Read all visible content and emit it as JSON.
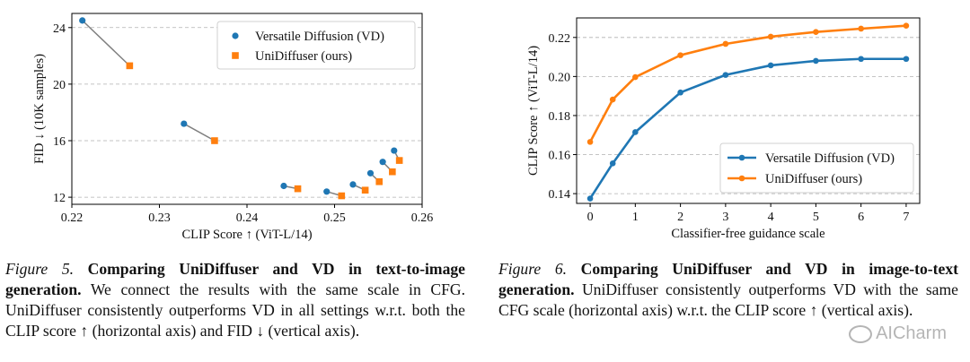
{
  "chart_data": [
    {
      "type": "scatter",
      "xlabel": "CLIP Score ↑ (ViT-L/14)",
      "ylabel": "FID ↓ (10K samples)",
      "xlim": [
        0.22,
        0.26
      ],
      "ylim": [
        11.5,
        25
      ],
      "xticks": [
        0.22,
        0.23,
        0.24,
        0.25,
        0.26
      ],
      "yticks": [
        12,
        16,
        20,
        24
      ],
      "xtick_labels": [
        "0.22",
        "0.23",
        "0.24",
        "0.25",
        "0.26"
      ],
      "ytick_labels": [
        "12",
        "16",
        "20",
        "24"
      ],
      "grid": "horizontal dashed",
      "legend_position": "top-right",
      "connect_pairs": true,
      "series": [
        {
          "name": "Versatile Diffusion (VD)",
          "marker": "circle",
          "color": "#1f77b4",
          "x": [
            0.2212,
            0.2328,
            0.2442,
            0.2491,
            0.2521,
            0.2541,
            0.2555,
            0.2568
          ],
          "y": [
            24.5,
            17.2,
            12.8,
            12.4,
            12.9,
            13.7,
            14.5,
            15.3
          ]
        },
        {
          "name": "UniDiffuser (ours)",
          "marker": "square",
          "color": "#ff7f0e",
          "x": [
            0.2266,
            0.2363,
            0.2458,
            0.2508,
            0.2535,
            0.2551,
            0.2566,
            0.2574
          ],
          "y": [
            21.3,
            16.0,
            12.6,
            12.1,
            12.5,
            13.1,
            13.8,
            14.6
          ]
        }
      ]
    },
    {
      "type": "line",
      "xlabel": "Classifier-free guidance scale",
      "ylabel": "CLIP Score ↑ (ViT-L/14)",
      "xlim": [
        -0.3,
        7.3
      ],
      "ylim": [
        0.135,
        0.23
      ],
      "xticks": [
        0,
        1,
        2,
        3,
        4,
        5,
        6,
        7
      ],
      "yticks": [
        0.14,
        0.16,
        0.18,
        0.2,
        0.22
      ],
      "xtick_labels": [
        "0",
        "1",
        "2",
        "3",
        "4",
        "5",
        "6",
        "7"
      ],
      "ytick_labels": [
        "0.14",
        "0.16",
        "0.18",
        "0.20",
        "0.22"
      ],
      "grid": "horizontal dashed",
      "legend_position": "lower-right",
      "x": [
        0,
        0.5,
        1,
        2,
        3,
        4,
        5,
        6,
        7
      ],
      "series": [
        {
          "name": "Versatile Diffusion (VD)",
          "color": "#1f77b4",
          "values": [
            0.1375,
            0.1555,
            0.1715,
            0.1918,
            0.2008,
            0.2057,
            0.208,
            0.209,
            0.209
          ]
        },
        {
          "name": "UniDiffuser (ours)",
          "color": "#ff7f0e",
          "values": [
            0.1665,
            0.1882,
            0.1997,
            0.2109,
            0.2167,
            0.2204,
            0.2228,
            0.2245,
            0.226
          ]
        }
      ]
    }
  ],
  "captions": {
    "left": {
      "label": "Figure 5.",
      "title": "Comparing UniDiffuser and VD in text-to-image generation.",
      "body": "We connect the results with the same scale in CFG. UniDiffuser consistently outperforms VD in all settings w.r.t. both the CLIP score ↑ (horizontal axis) and FID ↓ (vertical axis)."
    },
    "right": {
      "label": "Figure 6.",
      "title": "Comparing UniDiffuser and VD in image-to-text generation.",
      "body": "UniDiffuser consistently outperforms VD with the same CFG scale (horizontal axis) w.r.t. the CLIP score ↑ (vertical axis)."
    }
  },
  "watermark": {
    "text": "AICharm",
    "icon": "wechat-icon"
  }
}
